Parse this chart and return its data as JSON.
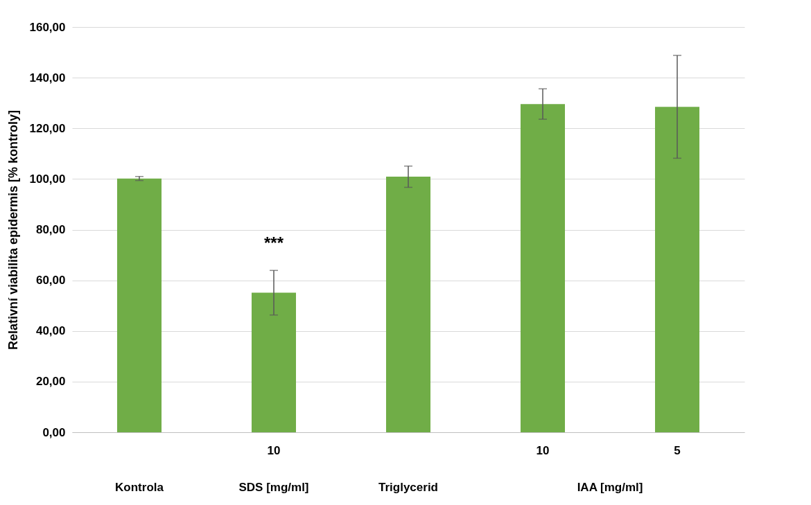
{
  "chart_data": {
    "type": "bar",
    "ylabel": "Relativní viabilita epidermis [% kontroly]",
    "categories": [
      null,
      "10",
      null,
      "10",
      "5"
    ],
    "values": [
      100.2,
      55.1,
      100.9,
      129.6,
      128.5
    ],
    "errors": [
      0.8,
      8.8,
      4.2,
      6.0,
      20.3
    ],
    "color": "#70ad47",
    "ylim": [
      0,
      160
    ],
    "yticks": [
      {
        "value": 0,
        "label": "0,00"
      },
      {
        "value": 20,
        "label": "20,00"
      },
      {
        "value": 40,
        "label": "40,00"
      },
      {
        "value": 60,
        "label": "60,00"
      },
      {
        "value": 80,
        "label": "80,00"
      },
      {
        "value": 100,
        "label": "100,00"
      },
      {
        "value": 120,
        "label": "120,00"
      },
      {
        "value": 140,
        "label": "140,00"
      },
      {
        "value": 160,
        "label": "160,00"
      }
    ],
    "grid": true,
    "annotations": [
      "Kontrola",
      "SDS [mg/ml]",
      "Triglycerid",
      "IAA [mg/ml]",
      "***"
    ]
  }
}
